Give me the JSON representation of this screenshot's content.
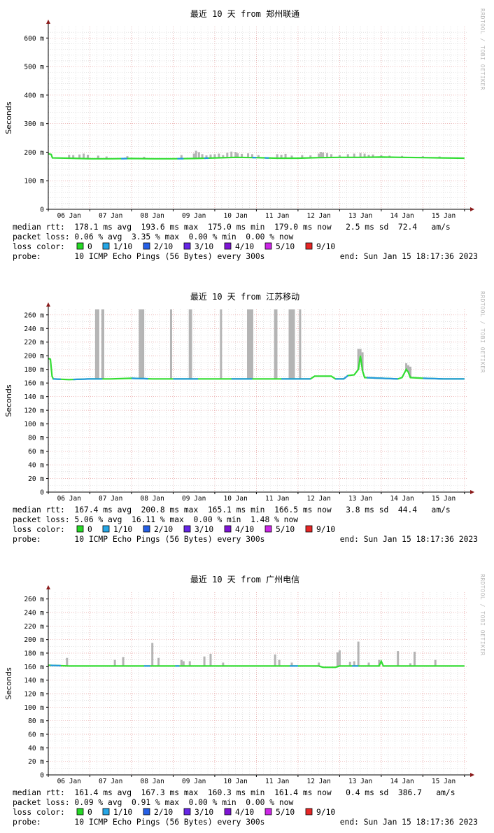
{
  "watermark": "RRDTOOL / TOBI OETIKER",
  "chart_data": [
    {
      "type": "line",
      "title": "最近 10 天 from 郑州联通",
      "ylabel": "Seconds",
      "xlabels": [
        "06 Jan",
        "07 Jan",
        "08 Jan",
        "09 Jan",
        "10 Jan",
        "11 Jan",
        "12 Jan",
        "13 Jan",
        "14 Jan",
        "15 Jan"
      ],
      "x_tick_pos": [
        0.5,
        1.5,
        2.5,
        3.5,
        4.5,
        5.5,
        6.5,
        7.5,
        8.5,
        9.5
      ],
      "xlim": [
        0,
        10.07
      ],
      "ylim": [
        0,
        640
      ],
      "yticks": [
        0,
        100,
        200,
        300,
        400,
        500,
        600
      ],
      "ytick_labels": [
        "0",
        "100 m",
        "200 m",
        "300 m",
        "400 m",
        "500 m",
        "600 m"
      ],
      "ygrid_minor": 20,
      "median": [
        [
          0,
          195
        ],
        [
          0.07,
          192
        ],
        [
          0.1,
          180
        ],
        [
          0.5,
          179
        ],
        [
          1,
          177
        ],
        [
          1.5,
          177
        ],
        [
          2,
          178
        ],
        [
          2.5,
          177
        ],
        [
          3,
          177
        ],
        [
          3.5,
          178
        ],
        [
          4,
          180
        ],
        [
          4.5,
          182
        ],
        [
          5,
          181
        ],
        [
          5.5,
          179
        ],
        [
          6,
          179
        ],
        [
          6.5,
          181
        ],
        [
          7,
          182
        ],
        [
          7.5,
          182
        ],
        [
          8,
          183
        ],
        [
          8.5,
          182
        ],
        [
          9,
          181
        ],
        [
          9.5,
          180
        ],
        [
          10,
          179
        ]
      ],
      "median_blue_segments": [
        [
          1.75,
          1.9
        ],
        [
          3.1,
          3.25
        ],
        [
          3.75,
          3.85
        ],
        [
          4.9,
          5.0
        ],
        [
          5.2,
          5.3
        ]
      ],
      "spikes": [
        [
          0.5,
          191
        ],
        [
          0.6,
          190
        ],
        [
          0.75,
          192
        ],
        [
          0.85,
          195
        ],
        [
          0.95,
          191
        ],
        [
          1.2,
          188
        ],
        [
          1.4,
          185
        ],
        [
          1.9,
          186
        ],
        [
          2.3,
          184
        ],
        [
          3.2,
          190
        ],
        [
          3.5,
          195
        ],
        [
          3.55,
          205
        ],
        [
          3.62,
          200
        ],
        [
          3.7,
          193
        ],
        [
          3.8,
          189
        ],
        [
          3.9,
          192
        ],
        [
          4,
          193
        ],
        [
          4.1,
          195
        ],
        [
          4.2,
          190
        ],
        [
          4.3,
          198
        ],
        [
          4.4,
          202
        ],
        [
          4.5,
          201
        ],
        [
          4.55,
          196
        ],
        [
          4.65,
          194
        ],
        [
          4.8,
          196
        ],
        [
          4.9,
          193
        ],
        [
          5.05,
          190
        ],
        [
          5.5,
          193
        ],
        [
          5.6,
          191
        ],
        [
          5.7,
          194
        ],
        [
          5.85,
          188
        ],
        [
          6.1,
          190
        ],
        [
          6.3,
          189
        ],
        [
          6.5,
          195
        ],
        [
          6.55,
          201
        ],
        [
          6.6,
          199
        ],
        [
          6.7,
          197
        ],
        [
          6.8,
          193
        ],
        [
          7,
          190
        ],
        [
          7.2,
          193
        ],
        [
          7.35,
          195
        ],
        [
          7.5,
          197
        ],
        [
          7.6,
          195
        ],
        [
          7.7,
          191
        ],
        [
          7.8,
          192
        ],
        [
          8,
          190
        ],
        [
          8.2,
          188
        ],
        [
          8.5,
          187
        ],
        [
          9,
          186
        ],
        [
          9.4,
          185
        ]
      ],
      "stats": {
        "median_rtt": "median rtt:  178.1 ms avg  193.6 ms max  175.0 ms min  179.0 ms now   2.5 ms sd  72.4   am/s",
        "packet_loss": "packet loss: 0.06 % avg  3.35 % max  0.00 % min  0.00 % now",
        "probe_left": "probe:       10 ICMP Echo Pings (56 Bytes) every 300s",
        "probe_end": "end: Sun Jan 15 18:17:36 2023"
      }
    },
    {
      "type": "line",
      "title": "最近 10 天 from 江苏移动",
      "ylabel": "Seconds",
      "xlabels": [
        "06 Jan",
        "07 Jan",
        "08 Jan",
        "09 Jan",
        "10 Jan",
        "11 Jan",
        "12 Jan",
        "13 Jan",
        "14 Jan",
        "15 Jan"
      ],
      "x_tick_pos": [
        0.5,
        1.5,
        2.5,
        3.5,
        4.5,
        5.5,
        6.5,
        7.5,
        8.5,
        9.5
      ],
      "xlim": [
        0,
        10.07
      ],
      "ylim": [
        0,
        268
      ],
      "yticks": [
        0,
        20,
        40,
        60,
        80,
        100,
        120,
        140,
        160,
        180,
        200,
        220,
        240,
        260
      ],
      "ytick_labels": [
        "0",
        "20 m",
        "40 m",
        "60 m",
        "80 m",
        "100 m",
        "120 m",
        "140 m",
        "160 m",
        "180 m",
        "200 m",
        "220 m",
        "240 m",
        "260 m"
      ],
      "ygrid_minor": 10,
      "median": [
        [
          0,
          196
        ],
        [
          0.05,
          195
        ],
        [
          0.09,
          170
        ],
        [
          0.12,
          166
        ],
        [
          0.5,
          165
        ],
        [
          1,
          166
        ],
        [
          1.5,
          166
        ],
        [
          2,
          167
        ],
        [
          2.5,
          166
        ],
        [
          3,
          166
        ],
        [
          3.5,
          166
        ],
        [
          4,
          166
        ],
        [
          4.5,
          166
        ],
        [
          5,
          166
        ],
        [
          5.5,
          166
        ],
        [
          6,
          166
        ],
        [
          6.3,
          166
        ],
        [
          6.4,
          170
        ],
        [
          6.8,
          170
        ],
        [
          6.9,
          166
        ],
        [
          7.1,
          166
        ],
        [
          7.2,
          171
        ],
        [
          7.35,
          172
        ],
        [
          7.45,
          180
        ],
        [
          7.5,
          200
        ],
        [
          7.55,
          178
        ],
        [
          7.6,
          168
        ],
        [
          8,
          167
        ],
        [
          8.4,
          166
        ],
        [
          8.5,
          168
        ],
        [
          8.6,
          180
        ],
        [
          8.65,
          176
        ],
        [
          8.7,
          168
        ],
        [
          9,
          167
        ],
        [
          9.5,
          166
        ],
        [
          10,
          166
        ]
      ],
      "median_blue_segments": [
        [
          0.12,
          0.3
        ],
        [
          0.6,
          1.3
        ],
        [
          2.0,
          2.4
        ],
        [
          3.0,
          3.6
        ],
        [
          4.4,
          4.9
        ],
        [
          5.6,
          6.3
        ],
        [
          6.9,
          7.2
        ],
        [
          7.65,
          8.4
        ],
        [
          9.0,
          10
        ]
      ],
      "spikes": [
        [
          1.15,
          268
        ],
        [
          1.2,
          268
        ],
        [
          1.3,
          268
        ],
        [
          1.32,
          268
        ],
        [
          2.2,
          268
        ],
        [
          2.25,
          268
        ],
        [
          2.28,
          268
        ],
        [
          2.95,
          268
        ],
        [
          3.4,
          268
        ],
        [
          3.43,
          268
        ],
        [
          4.15,
          268
        ],
        [
          4.8,
          268
        ],
        [
          4.85,
          268
        ],
        [
          4.88,
          268
        ],
        [
          4.9,
          268
        ],
        [
          5.45,
          268
        ],
        [
          5.48,
          268
        ],
        [
          5.8,
          268
        ],
        [
          5.85,
          268
        ],
        [
          5.9,
          268
        ],
        [
          6.05,
          268
        ],
        [
          7.45,
          210
        ],
        [
          7.5,
          210
        ],
        [
          7.55,
          205
        ],
        [
          8.6,
          189
        ],
        [
          8.65,
          186
        ],
        [
          8.7,
          184
        ]
      ],
      "stats": {
        "median_rtt": "median rtt:  167.4 ms avg  200.8 ms max  165.1 ms min  166.5 ms now   3.8 ms sd  44.4   am/s",
        "packet_loss": "packet loss: 5.06 % avg  16.11 % max  0.00 % min  1.48 % now",
        "probe_left": "probe:       10 ICMP Echo Pings (56 Bytes) every 300s",
        "probe_end": "end: Sun Jan 15 18:17:36 2023"
      }
    },
    {
      "type": "line",
      "title": "最近 10 天 from 广州电信",
      "ylabel": "Seconds",
      "xlabels": [
        "06 Jan",
        "07 Jan",
        "08 Jan",
        "09 Jan",
        "10 Jan",
        "11 Jan",
        "12 Jan",
        "13 Jan",
        "14 Jan",
        "15 Jan"
      ],
      "x_tick_pos": [
        0.5,
        1.5,
        2.5,
        3.5,
        4.5,
        5.5,
        6.5,
        7.5,
        8.5,
        9.5
      ],
      "xlim": [
        0,
        10.07
      ],
      "ylim": [
        0,
        270
      ],
      "yticks": [
        0,
        20,
        40,
        60,
        80,
        100,
        120,
        140,
        160,
        180,
        200,
        220,
        240,
        260
      ],
      "ytick_labels": [
        "0",
        "20 m",
        "40 m",
        "60 m",
        "80 m",
        "100 m",
        "120 m",
        "140 m",
        "160 m",
        "180 m",
        "200 m",
        "220 m",
        "240 m",
        "260 m"
      ],
      "ygrid_minor": 10,
      "median": [
        [
          0,
          162
        ],
        [
          0.5,
          161
        ],
        [
          1,
          161
        ],
        [
          1.5,
          161
        ],
        [
          2,
          161
        ],
        [
          2.5,
          161
        ],
        [
          3,
          161
        ],
        [
          3.5,
          161
        ],
        [
          4,
          161
        ],
        [
          4.5,
          161
        ],
        [
          5,
          161
        ],
        [
          5.5,
          161
        ],
        [
          6,
          161
        ],
        [
          6.5,
          161
        ],
        [
          6.6,
          159
        ],
        [
          6.9,
          159
        ],
        [
          7,
          161
        ],
        [
          7.5,
          161
        ],
        [
          7.95,
          161
        ],
        [
          8,
          168
        ],
        [
          8.05,
          161
        ],
        [
          8.5,
          161
        ],
        [
          9,
          161
        ],
        [
          9.5,
          161
        ],
        [
          10,
          161
        ]
      ],
      "median_blue_segments": [
        [
          0.05,
          0.3
        ],
        [
          2.3,
          2.45
        ],
        [
          3.05,
          3.15
        ],
        [
          5.8,
          6.0
        ],
        [
          7.3,
          7.45
        ]
      ],
      "spikes": [
        [
          0.45,
          173
        ],
        [
          1.6,
          170
        ],
        [
          1.8,
          174
        ],
        [
          2.5,
          195
        ],
        [
          2.65,
          173
        ],
        [
          3.2,
          170
        ],
        [
          3.25,
          168
        ],
        [
          3.4,
          168
        ],
        [
          3.75,
          175
        ],
        [
          3.9,
          179
        ],
        [
          4.2,
          166
        ],
        [
          5.45,
          178
        ],
        [
          5.55,
          170
        ],
        [
          5.85,
          166
        ],
        [
          6.5,
          166
        ],
        [
          6.95,
          181
        ],
        [
          7,
          184
        ],
        [
          7.25,
          167
        ],
        [
          7.35,
          168
        ],
        [
          7.45,
          197
        ],
        [
          7.7,
          166
        ],
        [
          7.95,
          170
        ],
        [
          8.4,
          183
        ],
        [
          8.7,
          165
        ],
        [
          8.8,
          182
        ],
        [
          9.3,
          170
        ]
      ],
      "stats": {
        "median_rtt": "median rtt:  161.4 ms avg  167.3 ms max  160.3 ms min  161.4 ms now   0.4 ms sd  386.7   am/s",
        "packet_loss": "packet loss: 0.09 % avg  0.91 % max  0.00 % min  0.00 % now",
        "probe_left": "probe:       10 ICMP Echo Pings (56 Bytes) every 300s",
        "probe_end": "end: Sun Jan 15 18:17:36 2023"
      }
    }
  ],
  "legend": {
    "label": "loss color:",
    "items": [
      {
        "label": "0",
        "color": "#26d926"
      },
      {
        "label": "1/10",
        "color": "#26a6e6"
      },
      {
        "label": "2/10",
        "color": "#2660e6"
      },
      {
        "label": "3/10",
        "color": "#6626e6"
      },
      {
        "label": "4/10",
        "color": "#7e14d4"
      },
      {
        "label": "5/10",
        "color": "#cc26e6"
      },
      {
        "label": "9/10",
        "color": "#e62626"
      }
    ]
  },
  "colors": {
    "median_green": "#33dd33",
    "median_blue": "#2299dd",
    "smoke": "#b4b4b4",
    "grid_major": "#e8a0a0",
    "grid_minor": "#d0d0d0",
    "axis": "#000000",
    "arrow": "#8b1a1a"
  }
}
